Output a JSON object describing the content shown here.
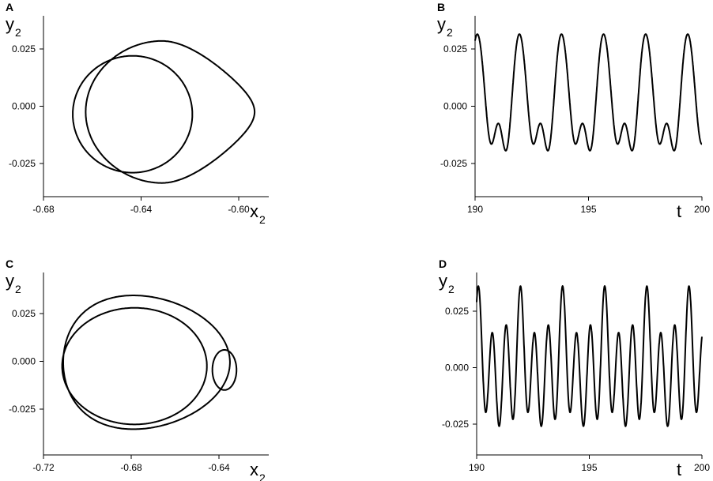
{
  "chart_data": [
    {
      "panel_label": "A",
      "type": "line",
      "xlabel": "x",
      "xlabel_sub": "2",
      "ylabel": "y",
      "ylabel_sub": "2",
      "xlim": [
        -0.68,
        -0.583
      ],
      "ylim": [
        -0.04,
        0.04
      ],
      "xticks": [
        -0.68,
        -0.64,
        -0.6
      ],
      "xtick_labels": [
        "-0.68",
        "-0.64",
        "-0.60"
      ],
      "yticks": [
        0.025,
        0.0,
        -0.025
      ],
      "ytick_labels": [
        "0.025",
        "0.000",
        "-0.025"
      ],
      "curve": "phase_A",
      "grid": false
    },
    {
      "panel_label": "B",
      "type": "line",
      "xlabel": "t",
      "ylabel": "y",
      "ylabel_sub": "2",
      "xlim": [
        190,
        200
      ],
      "ylim": [
        -0.035,
        0.04
      ],
      "xticks": [
        190,
        195,
        200
      ],
      "xtick_labels": [
        "190",
        "195",
        "200"
      ],
      "yticks": [
        0.025,
        0.0,
        -0.025
      ],
      "ytick_labels": [
        "0.025",
        "0.000",
        "-0.025"
      ],
      "curve": "time_B",
      "grid": false
    },
    {
      "panel_label": "C",
      "type": "line",
      "xlabel": "x",
      "xlabel_sub": "2",
      "ylabel": "y",
      "ylabel_sub": "2",
      "xlim": [
        -0.72,
        -0.624
      ],
      "ylim": [
        -0.044,
        0.044
      ],
      "xticks": [
        -0.72,
        -0.68,
        -0.64
      ],
      "xtick_labels": [
        "-0.72",
        "-0.68",
        "-0.64"
      ],
      "yticks": [
        0.025,
        0.0,
        -0.025
      ],
      "ytick_labels": [
        "0.025",
        "0.000",
        "-0.025"
      ],
      "curve": "phase_C",
      "grid": false
    },
    {
      "panel_label": "D",
      "type": "line",
      "xlabel": "t",
      "ylabel": "y",
      "ylabel_sub": "2",
      "xlim": [
        190,
        200
      ],
      "ylim": [
        -0.038,
        0.04
      ],
      "xticks": [
        190,
        195,
        200
      ],
      "xtick_labels": [
        "190",
        "195",
        "200"
      ],
      "yticks": [
        0.025,
        0.0,
        -0.025
      ],
      "ytick_labels": [
        "0.025",
        "0.000",
        "-0.025"
      ],
      "curve": "time_D",
      "grid": false
    }
  ],
  "colors": {
    "line": "#000000",
    "axis": "#000000",
    "background": "#ffffff"
  }
}
